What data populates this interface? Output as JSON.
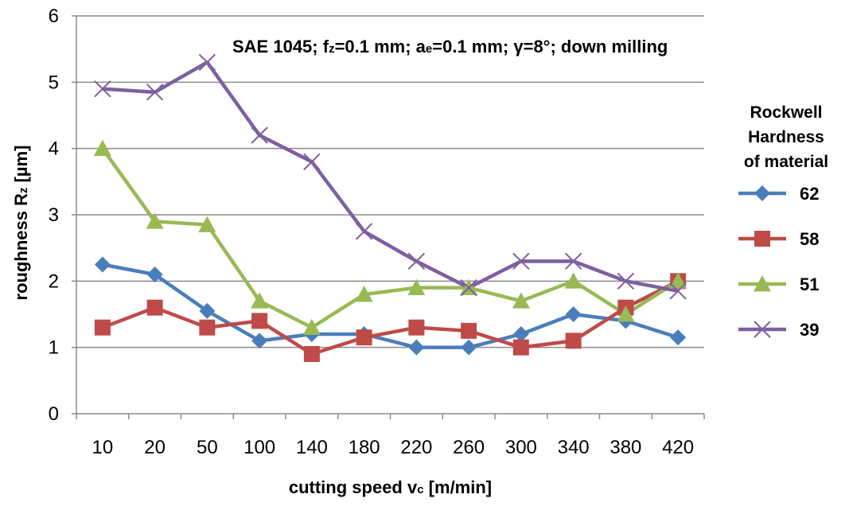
{
  "chart_data": {
    "type": "line",
    "annotation": {
      "parts": [
        {
          "text": "SAE 1045; f",
          "sub": false
        },
        {
          "text": "z",
          "sub": true
        },
        {
          "text": "=0.1 mm; a",
          "sub": false
        },
        {
          "text": "e",
          "sub": true
        },
        {
          "text": "=0.1 mm; γ=8°; down milling",
          "sub": false
        }
      ]
    },
    "xlabel": {
      "parts": [
        {
          "text": "cutting  speed  v",
          "sub": false
        },
        {
          "text": "c",
          "sub": true
        },
        {
          "text": " [m/min]",
          "sub": false
        }
      ]
    },
    "ylabel": {
      "parts": [
        {
          "text": "roughness R",
          "sub": false
        },
        {
          "text": "z",
          "sub": true
        },
        {
          "text": " [µm]",
          "sub": false
        }
      ]
    },
    "categories": [
      "10",
      "20",
      "50",
      "100",
      "140",
      "180",
      "220",
      "260",
      "300",
      "340",
      "380",
      "420"
    ],
    "ylim": [
      0,
      6
    ],
    "yticks": [
      "0",
      "1",
      "2",
      "3",
      "4",
      "5",
      "6"
    ],
    "grid": true,
    "legend": {
      "title_lines": [
        "Rockwell",
        "Hardness",
        "of material"
      ],
      "position": "right"
    },
    "series": [
      {
        "name": "62",
        "color": "#4a7ebb",
        "marker": "diamond",
        "values": [
          2.25,
          2.1,
          1.55,
          1.1,
          1.2,
          1.2,
          1.0,
          1.0,
          1.2,
          1.5,
          1.4,
          1.15
        ]
      },
      {
        "name": "58",
        "color": "#be4b48",
        "marker": "square",
        "values": [
          1.3,
          1.6,
          1.3,
          1.4,
          0.9,
          1.15,
          1.3,
          1.25,
          1.0,
          1.1,
          1.6,
          2.0
        ]
      },
      {
        "name": "51",
        "color": "#98b954",
        "marker": "triangle",
        "values": [
          4.0,
          2.9,
          2.85,
          1.7,
          1.3,
          1.8,
          1.9,
          1.9,
          1.7,
          2.0,
          1.5,
          2.0
        ]
      },
      {
        "name": "39",
        "color": "#7d60a0",
        "marker": "x",
        "values": [
          4.9,
          4.85,
          5.3,
          4.2,
          3.8,
          2.75,
          2.3,
          1.9,
          2.3,
          2.3,
          2.0,
          1.85
        ]
      }
    ]
  }
}
